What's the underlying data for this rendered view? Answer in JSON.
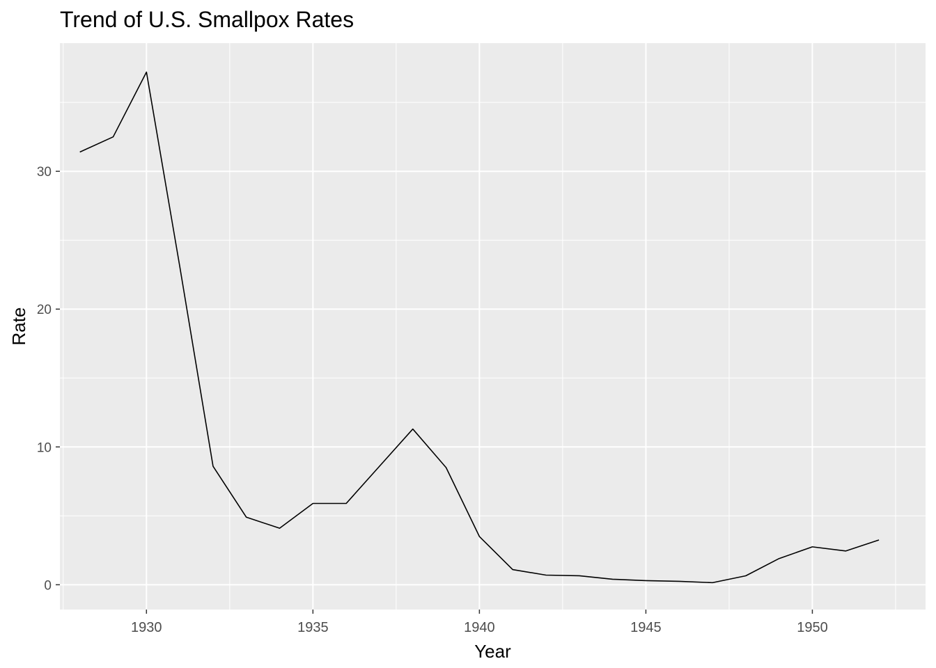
{
  "chart_data": {
    "type": "line",
    "title": "Trend of U.S. Smallpox Rates",
    "xlabel": "Year",
    "ylabel": "Rate",
    "x": [
      1928,
      1929,
      1930,
      1931,
      1932,
      1933,
      1934,
      1935,
      1936,
      1937,
      1938,
      1939,
      1940,
      1941,
      1942,
      1943,
      1944,
      1945,
      1946,
      1947,
      1948,
      1949,
      1950,
      1951,
      1952
    ],
    "series": [
      {
        "values": [
          31.4,
          32.5,
          37.2,
          23.1,
          8.6,
          4.9,
          4.1,
          5.9,
          5.9,
          8.6,
          11.3,
          8.5,
          3.5,
          1.1,
          0.7,
          0.65,
          0.4,
          0.3,
          0.25,
          0.15,
          0.65,
          1.9,
          2.75,
          2.45,
          3.25
        ]
      }
    ],
    "xlim": [
      1927.4,
      1953.4
    ],
    "ylim": [
      -1.8,
      39.3
    ],
    "x_ticks": [
      1930,
      1935,
      1940,
      1945,
      1950
    ],
    "y_ticks": [
      0,
      10,
      20,
      30
    ],
    "grid": true,
    "colors": {
      "panel": "#EBEBEB",
      "grid": "#FFFFFF",
      "line": "#000000",
      "tick_text": "#4D4D4D",
      "axis_title": "#000000"
    }
  }
}
